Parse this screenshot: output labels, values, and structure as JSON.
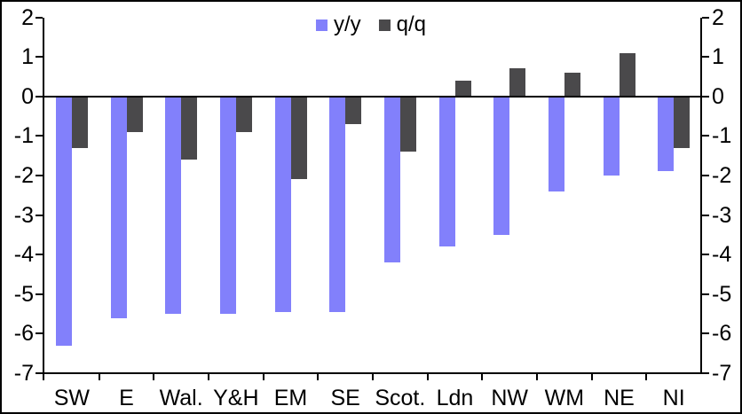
{
  "chart_data": {
    "type": "bar",
    "title": "",
    "xlabel": "",
    "ylabel": "",
    "categories": [
      "SW",
      "E",
      "Wal.",
      "Y&H",
      "EM",
      "SE",
      "Scot.",
      "Ldn",
      "NW",
      "WM",
      "NE",
      "NI"
    ],
    "series": [
      {
        "name": "y/y",
        "color": "#8280fb",
        "values": [
          -6.3,
          -5.6,
          -5.5,
          -5.5,
          -5.45,
          -5.45,
          -4.2,
          -3.8,
          -3.5,
          -2.4,
          -2.0,
          -1.9
        ]
      },
      {
        "name": "q/q",
        "color": "#4a494b",
        "values": [
          -1.3,
          -0.9,
          -1.6,
          -0.9,
          -2.1,
          -0.7,
          -1.4,
          0.4,
          0.7,
          0.6,
          1.1,
          -1.3
        ]
      }
    ],
    "ylim": [
      -7,
      2
    ],
    "yticks": [
      2,
      1,
      0,
      -1,
      -2,
      -3,
      -4,
      -5,
      -6,
      -7
    ],
    "grid": false,
    "dual_y_axis": true,
    "legend_position": "top-center",
    "axis_color": "#000000",
    "background_color": "#ffffff"
  },
  "legend": {
    "items": [
      {
        "label": "y/y",
        "color": "#8280fb"
      },
      {
        "label": "q/q",
        "color": "#4a494b"
      }
    ]
  }
}
